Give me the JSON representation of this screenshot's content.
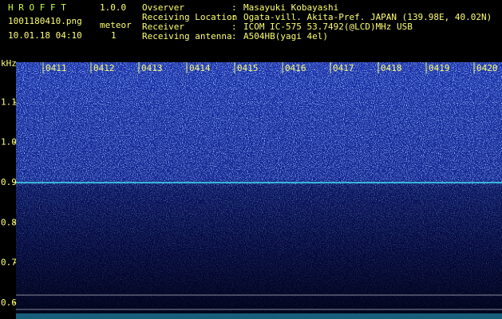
{
  "header": {
    "app": "H R O F F T",
    "version": "1.0.0",
    "file": "1001180410.png",
    "datetime": "10.01.18 04:10",
    "count_label": "meteor",
    "count": "1",
    "info": [
      {
        "label": "Ovserver",
        "value": "Masayuki Kobayashi"
      },
      {
        "label": "Receiving Location",
        "value": "Ogata-vill. Akita-Pref. JAPAN (139.98E, 40.02N)"
      },
      {
        "label": "Receiver",
        "value": "ICOM IC-575 53.7492(@LCD)MHz USB"
      },
      {
        "label": "Receiving antenna",
        "value": "A504HB(yagi 4el)"
      }
    ]
  },
  "spectrogram": {
    "y_unit": "kHz",
    "ylim": [
      0.56,
      1.2
    ],
    "yticks": [
      {
        "value": 1.1,
        "label": "1.1"
      },
      {
        "value": 1.0,
        "label": "1.0"
      },
      {
        "value": 0.9,
        "label": "0.9"
      },
      {
        "value": 0.8,
        "label": "0.8"
      },
      {
        "value": 0.7,
        "label": "0.7"
      },
      {
        "value": 0.6,
        "label": "0.6"
      }
    ],
    "time_labels": [
      "0411",
      "0412",
      "0413",
      "0414",
      "0415",
      "0416",
      "0417",
      "0418",
      "0419",
      "0420"
    ]
  }
}
